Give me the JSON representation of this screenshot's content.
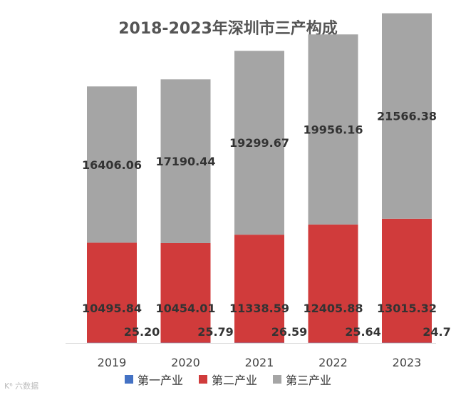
{
  "watermark": "K⁶ 六数据",
  "chart_data": {
    "type": "bar",
    "stacked": true,
    "title": "2018-2023年深圳市三产构成",
    "categories": [
      "2019",
      "2020",
      "2021",
      "2022",
      "2023"
    ],
    "series": [
      {
        "name": "第一产业",
        "color": "#4472C4",
        "values": [
          25.2,
          25.79,
          26.59,
          25.64,
          24.7
        ],
        "labels": [
          "25.20",
          "25.79",
          "26.59",
          "25.64",
          "24.7"
        ]
      },
      {
        "name": "第二产业",
        "color": "#D03B3B",
        "values": [
          10495.84,
          10454.01,
          11338.59,
          12405.88,
          13015.32
        ],
        "labels": [
          "10495.84",
          "10454.01",
          "11338.59",
          "12405.88",
          "13015.32"
        ]
      },
      {
        "name": "第三产业",
        "color": "#A5A5A5",
        "values": [
          16406.06,
          17190.44,
          19299.67,
          19956.16,
          21566.38
        ],
        "labels": [
          "16406.06",
          "17190.44",
          "19299.67",
          "19956.16",
          "21566.38"
        ]
      }
    ],
    "ylim": [
      0,
      36000
    ],
    "grid": false,
    "legend": "bottom"
  }
}
